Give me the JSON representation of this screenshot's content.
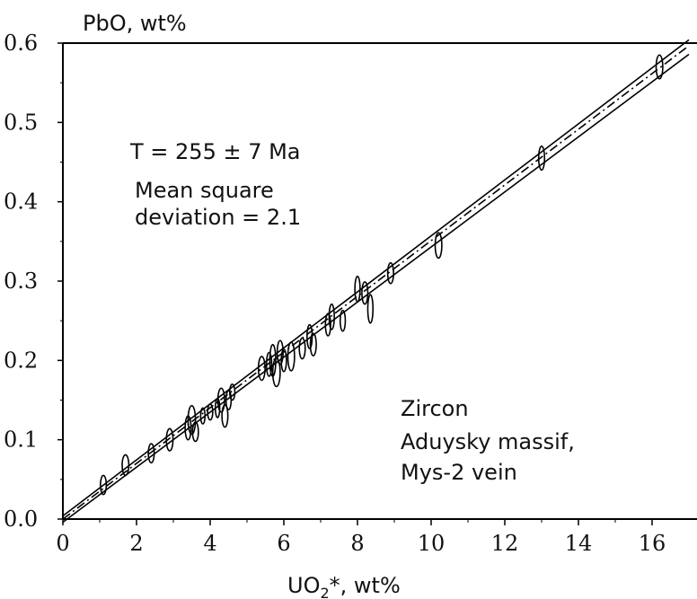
{
  "chart_data": {
    "type": "scatter",
    "xlabel_main": "UO",
    "xlabel_sub": "2",
    "xlabel_rest": "*, wt%",
    "ylabel": "PbO, wt%",
    "xlim": [
      0,
      17
    ],
    "ylim": [
      0,
      0.6
    ],
    "x_ticks": [
      0,
      2,
      4,
      6,
      8,
      10,
      12,
      14,
      16
    ],
    "x_tick_labels": [
      "0",
      "2",
      "4",
      "6",
      "8",
      "10",
      "12",
      "14",
      "16"
    ],
    "y_ticks": [
      0,
      0.1,
      0.2,
      0.3,
      0.4,
      0.5,
      0.6
    ],
    "y_tick_labels": [
      "0.0",
      "0.1",
      "0.2",
      "0.3",
      "0.4",
      "0.5",
      "0.6"
    ],
    "grid": false,
    "annotations": {
      "age_line": "T = 255 ± 7 Ma",
      "msd_line1": "Mean square",
      "msd_line2": "deviation = 2.1",
      "mineral": "Zircon",
      "location1": "Aduysky massif,",
      "location2": "Mys-2 vein"
    },
    "regression": {
      "center": {
        "y_at_x0": 0.0,
        "slope": 0.0351
      },
      "upper_envelope": {
        "y_at_x0": 0.004,
        "slope": 0.0353
      },
      "lower_envelope": {
        "y_at_x0": -0.004,
        "slope": 0.0347
      }
    },
    "points": [
      {
        "x": 1.1,
        "y": 0.043,
        "ex": 0.08,
        "ey": 0.012
      },
      {
        "x": 1.7,
        "y": 0.068,
        "ex": 0.09,
        "ey": 0.013
      },
      {
        "x": 2.4,
        "y": 0.083,
        "ex": 0.08,
        "ey": 0.012
      },
      {
        "x": 2.9,
        "y": 0.1,
        "ex": 0.09,
        "ey": 0.014
      },
      {
        "x": 3.4,
        "y": 0.115,
        "ex": 0.08,
        "ey": 0.015
      },
      {
        "x": 3.5,
        "y": 0.125,
        "ex": 0.1,
        "ey": 0.018
      },
      {
        "x": 3.6,
        "y": 0.11,
        "ex": 0.08,
        "ey": 0.012
      },
      {
        "x": 3.8,
        "y": 0.13,
        "ex": 0.06,
        "ey": 0.01
      },
      {
        "x": 4.0,
        "y": 0.135,
        "ex": 0.07,
        "ey": 0.01
      },
      {
        "x": 4.2,
        "y": 0.14,
        "ex": 0.06,
        "ey": 0.012
      },
      {
        "x": 4.3,
        "y": 0.15,
        "ex": 0.09,
        "ey": 0.015
      },
      {
        "x": 4.4,
        "y": 0.13,
        "ex": 0.08,
        "ey": 0.014
      },
      {
        "x": 4.5,
        "y": 0.15,
        "ex": 0.07,
        "ey": 0.012
      },
      {
        "x": 4.6,
        "y": 0.16,
        "ex": 0.07,
        "ey": 0.01
      },
      {
        "x": 5.4,
        "y": 0.19,
        "ex": 0.09,
        "ey": 0.015
      },
      {
        "x": 5.6,
        "y": 0.195,
        "ex": 0.07,
        "ey": 0.015
      },
      {
        "x": 5.7,
        "y": 0.2,
        "ex": 0.08,
        "ey": 0.02
      },
      {
        "x": 5.8,
        "y": 0.185,
        "ex": 0.1,
        "ey": 0.018
      },
      {
        "x": 5.9,
        "y": 0.21,
        "ex": 0.08,
        "ey": 0.015
      },
      {
        "x": 6.0,
        "y": 0.2,
        "ex": 0.07,
        "ey": 0.014
      },
      {
        "x": 6.2,
        "y": 0.205,
        "ex": 0.09,
        "ey": 0.018
      },
      {
        "x": 6.5,
        "y": 0.215,
        "ex": 0.08,
        "ey": 0.013
      },
      {
        "x": 6.7,
        "y": 0.23,
        "ex": 0.07,
        "ey": 0.015
      },
      {
        "x": 6.8,
        "y": 0.22,
        "ex": 0.08,
        "ey": 0.014
      },
      {
        "x": 7.2,
        "y": 0.245,
        "ex": 0.07,
        "ey": 0.014
      },
      {
        "x": 7.3,
        "y": 0.255,
        "ex": 0.07,
        "ey": 0.016
      },
      {
        "x": 7.6,
        "y": 0.25,
        "ex": 0.07,
        "ey": 0.013
      },
      {
        "x": 8.0,
        "y": 0.29,
        "ex": 0.07,
        "ey": 0.016
      },
      {
        "x": 8.2,
        "y": 0.285,
        "ex": 0.08,
        "ey": 0.014
      },
      {
        "x": 8.35,
        "y": 0.265,
        "ex": 0.07,
        "ey": 0.018
      },
      {
        "x": 8.9,
        "y": 0.31,
        "ex": 0.08,
        "ey": 0.013
      },
      {
        "x": 10.2,
        "y": 0.345,
        "ex": 0.09,
        "ey": 0.016
      },
      {
        "x": 13.0,
        "y": 0.455,
        "ex": 0.08,
        "ey": 0.015
      },
      {
        "x": 16.2,
        "y": 0.57,
        "ex": 0.09,
        "ey": 0.015
      }
    ]
  }
}
